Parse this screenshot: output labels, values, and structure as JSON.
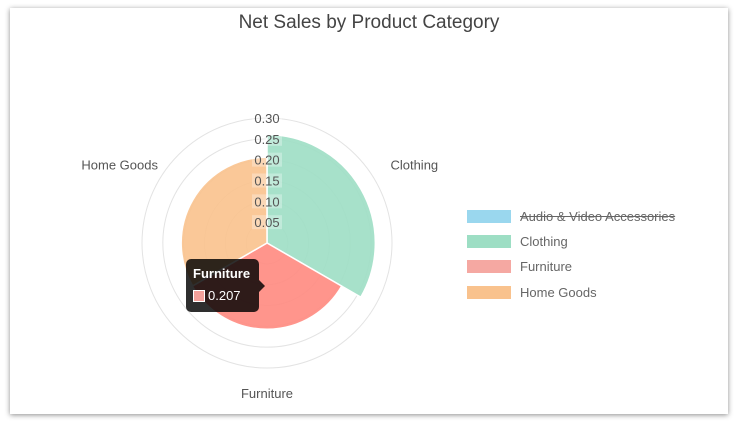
{
  "chart_data": {
    "type": "polarArea",
    "title": "Net Sales by Product Category",
    "categories": [
      "Audio & Video Accessories",
      "Clothing",
      "Furniture",
      "Home Goods"
    ],
    "values": [
      null,
      0.26,
      0.207,
      0.206
    ],
    "hidden": [
      "Audio & Video Accessories"
    ],
    "colors": [
      "#9ad7ee",
      "#9ddec4",
      "#f5a49e",
      "#f9c28d"
    ],
    "radial_ticks": [
      "0.05",
      "0.10",
      "0.15",
      "0.20",
      "0.25",
      "0.30"
    ],
    "rmax": 0.3,
    "grid": true,
    "legend": "right",
    "tooltip": {
      "title": "Furniture",
      "value": "0.207",
      "color": "#f3a19b"
    }
  }
}
